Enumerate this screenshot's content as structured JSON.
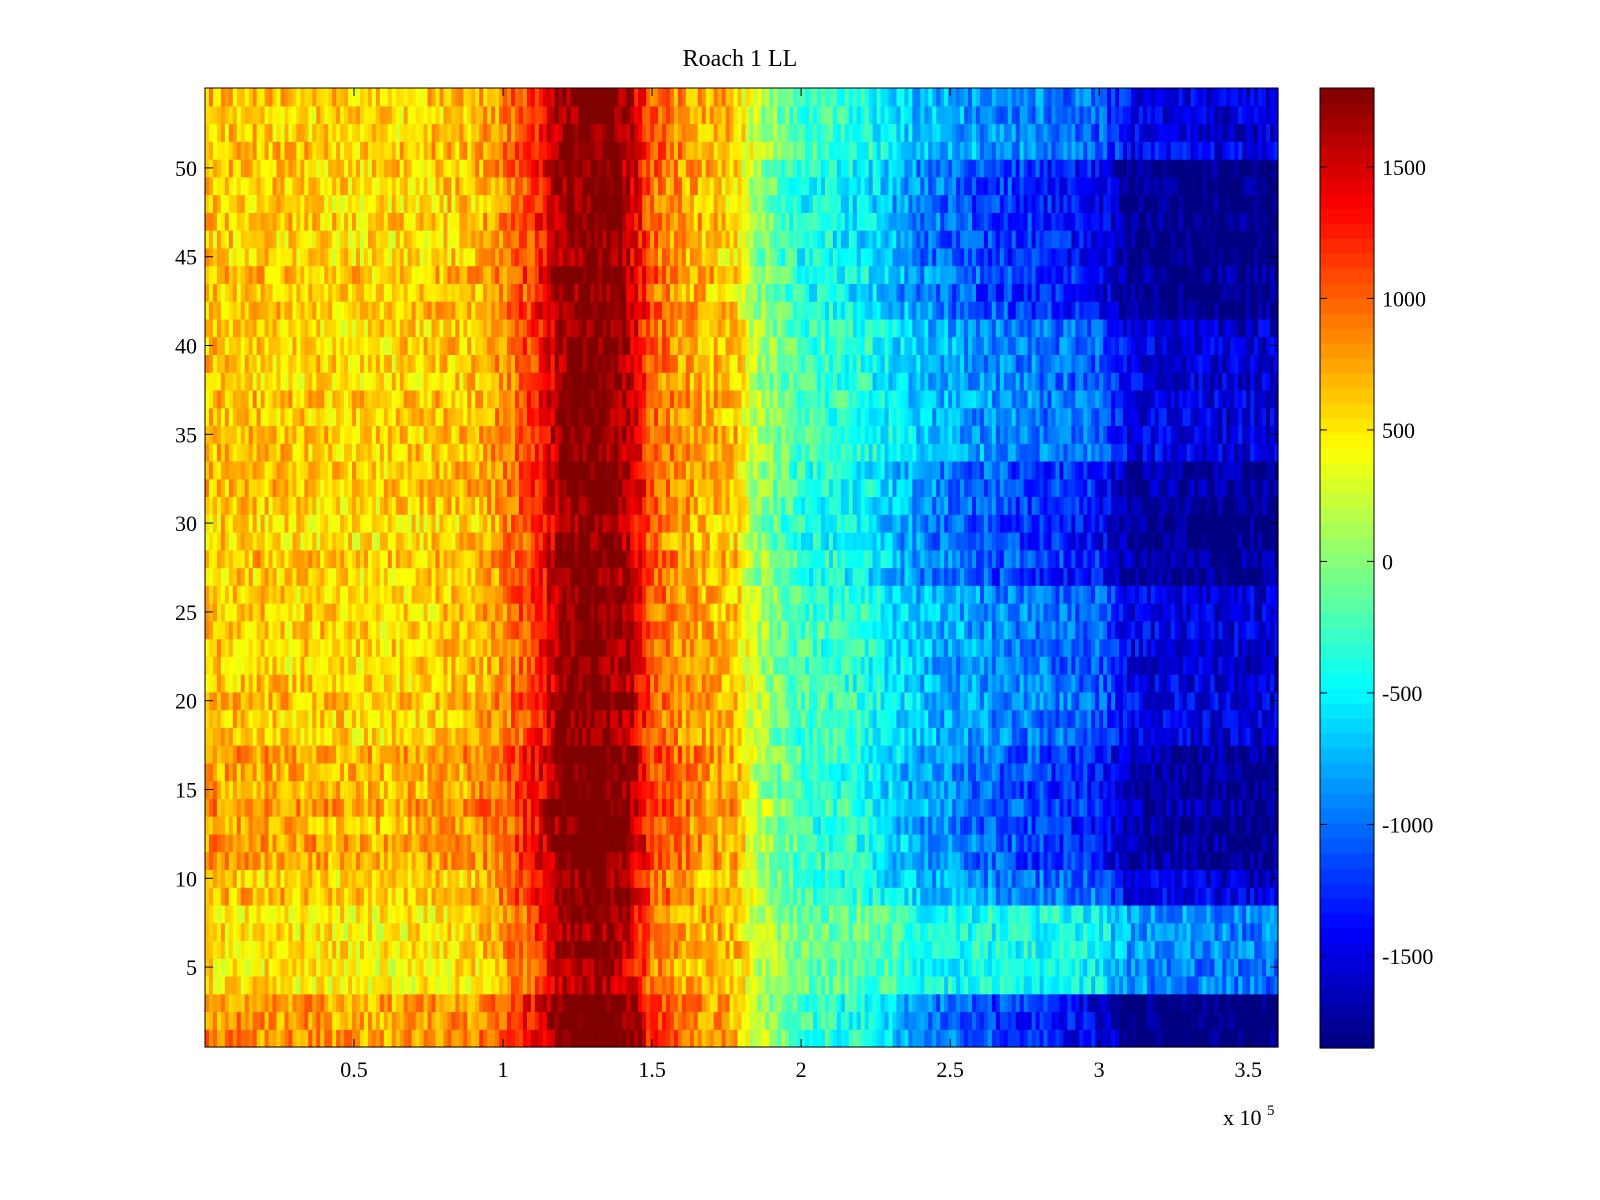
{
  "chart_data": {
    "type": "heatmap",
    "title": "Roach 1 LL",
    "xlabel": "",
    "ylabel": "",
    "xlim": [
      0,
      360000
    ],
    "ylim": [
      0.5,
      54.5
    ],
    "x_ticks": [
      50000,
      100000,
      150000,
      200000,
      250000,
      300000,
      350000
    ],
    "x_tick_labels": [
      "0.5",
      "1",
      "1.5",
      "2",
      "2.5",
      "3",
      "3.5"
    ],
    "x_exponent_label": "x 10",
    "x_exponent_power": "5",
    "y_ticks": [
      5,
      10,
      15,
      20,
      25,
      30,
      35,
      40,
      45,
      50
    ],
    "y_tick_labels": [
      "5",
      "10",
      "15",
      "20",
      "25",
      "30",
      "35",
      "40",
      "45",
      "50"
    ],
    "colormap": "jet",
    "clim": [
      -1850,
      1800
    ],
    "colorbar_ticks": [
      1500,
      1000,
      500,
      0,
      -500,
      -1000,
      -1500
    ],
    "colorbar_tick_labels": [
      "1500",
      "1000",
      "500",
      "0",
      "-500",
      "-1000",
      "-1500"
    ],
    "rows": 54,
    "column_profile": {
      "x": [
        0,
        30000,
        60000,
        90000,
        100000,
        110000,
        115000,
        120000,
        130000,
        140000,
        145000,
        150000,
        160000,
        170000,
        178000,
        185000,
        200000,
        220000,
        240000,
        260000,
        280000,
        300000,
        310000,
        330000,
        360000
      ],
      "values": [
        650,
        600,
        550,
        650,
        850,
        1150,
        1400,
        1750,
        1850,
        1700,
        1400,
        1000,
        800,
        700,
        650,
        150,
        -250,
        -350,
        -700,
        -850,
        -950,
        -1050,
        -1450,
        -1500,
        -1550
      ]
    },
    "row_offsets": [
      {
        "rows": [
          1,
          3
        ],
        "left": 200,
        "right": -400
      },
      {
        "rows": [
          4,
          8
        ],
        "left": -100,
        "right": 600
      },
      {
        "rows": [
          11,
          17
        ],
        "left": 150,
        "right": -250
      },
      {
        "rows": [
          27,
          33
        ],
        "left": 0,
        "right": -300
      },
      {
        "rows": [
          42,
          50
        ],
        "left": 0,
        "right": -350
      }
    ],
    "noise_amplitude": 280
  },
  "colors": {
    "axes_box": "#000000",
    "background": "#ffffff"
  }
}
